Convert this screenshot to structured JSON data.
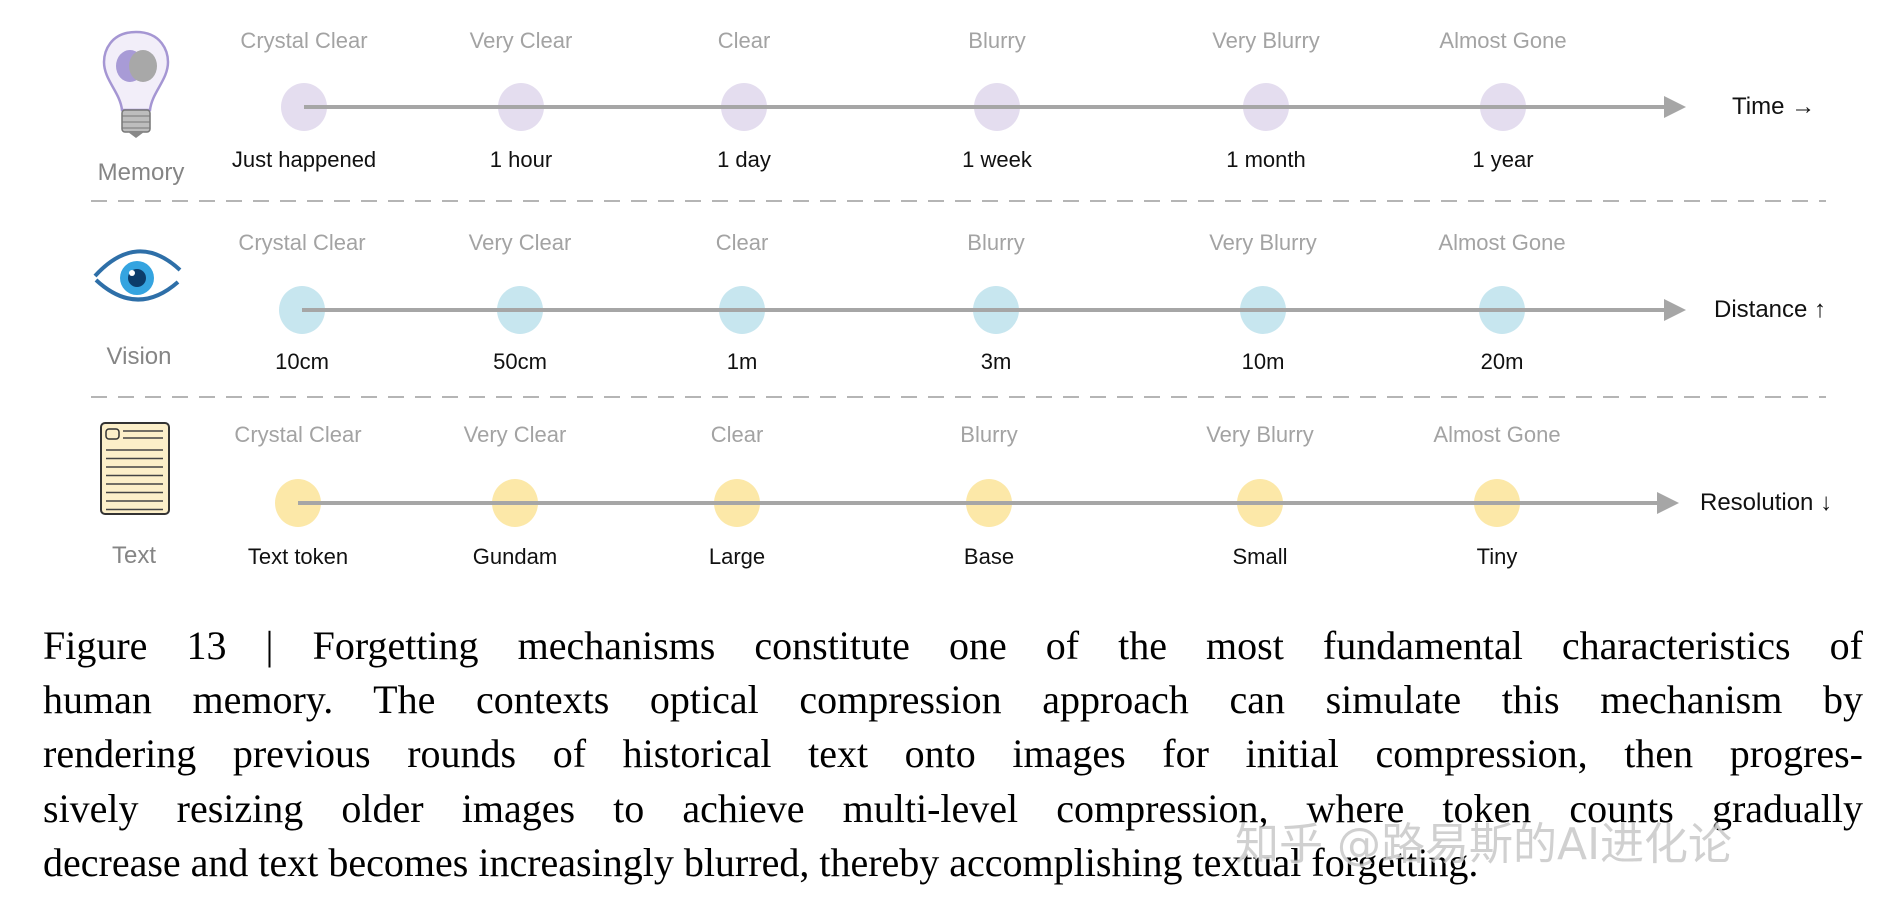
{
  "rows": [
    {
      "id": "memory",
      "label": "Memory",
      "axis": "Time →",
      "icon": "lightbulb-brain-icon",
      "color": "#e4ddef",
      "clarity": [
        "Crystal Clear",
        "Very Clear",
        "Clear",
        "Blurry",
        "Very Blurry",
        "Almost Gone"
      ],
      "values": [
        "Just happened",
        "1 hour",
        "1 day",
        "1 week",
        "1 month",
        "1 year"
      ]
    },
    {
      "id": "vision",
      "label": "Vision",
      "axis": "Distance ↑",
      "icon": "eye-icon",
      "color": "#c7e6ef",
      "clarity": [
        "Crystal Clear",
        "Very Clear",
        "Clear",
        "Blurry",
        "Very Blurry",
        "Almost Gone"
      ],
      "values": [
        "10cm",
        "50cm",
        "1m",
        "3m",
        "10m",
        "20m"
      ]
    },
    {
      "id": "text",
      "label": "Text",
      "axis": "Resolution ↓",
      "icon": "document-icon",
      "color": "#fce8a8",
      "clarity": [
        "Crystal Clear",
        "Very Clear",
        "Clear",
        "Blurry",
        "Very Blurry",
        "Almost Gone"
      ],
      "values": [
        "Text token",
        "Gundam",
        "Large",
        "Base",
        "Small",
        "Tiny"
      ]
    }
  ],
  "caption": {
    "lines": [
      "Figure 13 | Forgetting mechanisms constitute one of the most fundamental characteristics of",
      "human memory. The contexts optical compression approach can simulate this mechanism by",
      "rendering previous rounds of historical text onto images for initial compression, then progres-",
      "sively resizing older images to achieve multi-level compression, where token counts gradually",
      "decrease and text becomes increasingly blurred, thereby accomplishing textual forgetting."
    ]
  },
  "watermark": "知乎 @路易斯的AI进化论",
  "colors": {
    "axis_line": "#a6a6a6",
    "divider": "#b5b5b5"
  }
}
